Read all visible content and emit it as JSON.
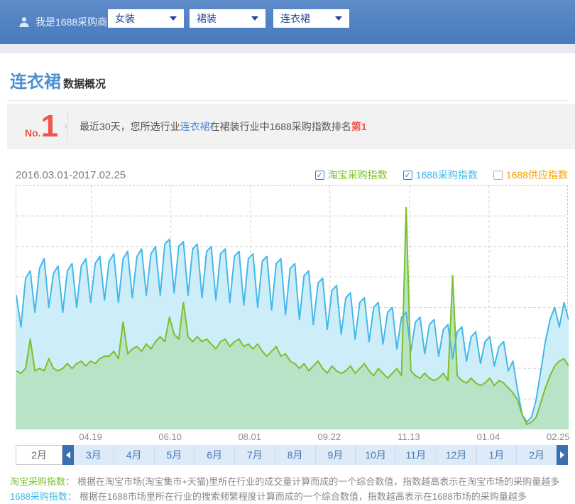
{
  "header": {
    "user_label": "我是1688采购商",
    "dropdowns": [
      "女装",
      "裙装",
      "连衣裙"
    ]
  },
  "page": {
    "title_keyword": "连衣裙",
    "title_suffix": "数据概况"
  },
  "rank_banner": {
    "rank_prefix": "No.",
    "rank_number": "1",
    "text_before": "最近30天，您所选行业",
    "keyword": "连衣裙",
    "text_middle": "在裙装行业中1688采购指数排名",
    "rank_text": "第1"
  },
  "chart": {
    "date_range": "2016.03.01-2017.02.25"
  },
  "chart_data": {
    "type": "area",
    "title": "",
    "x_axis": {
      "tick_labels": [
        "04.19",
        "06.10",
        "08.01",
        "09.22",
        "11.13",
        "01.04",
        "02.25"
      ],
      "tick_days": [
        49,
        101,
        153,
        205,
        257,
        309,
        361
      ],
      "total_days": 361
    },
    "y_axis": {
      "min": 0,
      "max": 100,
      "ticks_hidden": true,
      "h_gridlines": 7
    },
    "grid": {
      "color": "#d4d4d4",
      "dash": "4,3"
    },
    "legend_position": "top-right",
    "series": [
      {
        "name": "淘宝采购指数",
        "checked": true,
        "color": "#7cbf2a",
        "fill": "#b9e3c6",
        "values": [
          24,
          23,
          25,
          37,
          24,
          25,
          24,
          29,
          25,
          24,
          25,
          27,
          25,
          27,
          28,
          26,
          28,
          27,
          29,
          30,
          30,
          32,
          29,
          44,
          31,
          33,
          34,
          32,
          35,
          33,
          36,
          38,
          36,
          46,
          39,
          37,
          52,
          38,
          36,
          38,
          36,
          37,
          35,
          33,
          36,
          37,
          34,
          36,
          37,
          34,
          35,
          33,
          35,
          32,
          30,
          32,
          34,
          30,
          31,
          28,
          27,
          25,
          27,
          24,
          26,
          28,
          25,
          23,
          26,
          24,
          23,
          24,
          26,
          23,
          25,
          27,
          24,
          22,
          25,
          23,
          21,
          23,
          25,
          22,
          91,
          24,
          22,
          21,
          23,
          21,
          20,
          21,
          23,
          20,
          63,
          22,
          20,
          19,
          21,
          19,
          18,
          19,
          21,
          18,
          20,
          19,
          17,
          15,
          12,
          6,
          2,
          3,
          5,
          11,
          17,
          22,
          26,
          28,
          29,
          26
        ]
      },
      {
        "name": "1688采购指数",
        "checked": true,
        "color": "#45b8e8",
        "fill": "#cdeef9",
        "values": [
          55,
          42,
          62,
          65,
          48,
          66,
          70,
          50,
          64,
          67,
          48,
          65,
          68,
          50,
          67,
          70,
          52,
          68,
          71,
          53,
          69,
          72,
          52,
          70,
          73,
          54,
          71,
          74,
          55,
          72,
          75,
          55,
          76,
          78,
          56,
          75,
          77,
          55,
          74,
          76,
          54,
          73,
          75,
          53,
          72,
          74,
          52,
          71,
          73,
          51,
          70,
          72,
          50,
          69,
          71,
          49,
          68,
          70,
          47,
          66,
          68,
          45,
          63,
          65,
          43,
          60,
          62,
          41,
          57,
          59,
          39,
          54,
          56,
          37,
          52,
          54,
          36,
          50,
          52,
          35,
          48,
          50,
          33,
          46,
          48,
          32,
          44,
          46,
          31,
          43,
          45,
          30,
          41,
          43,
          29,
          40,
          42,
          28,
          38,
          40,
          27,
          36,
          38,
          26,
          34,
          36,
          24,
          28,
          16,
          6,
          3,
          5,
          12,
          24,
          36,
          45,
          50,
          42,
          52,
          45
        ]
      },
      {
        "name": "1688供应指数",
        "checked": false,
        "color": "#f5a100",
        "fill": "",
        "values": []
      }
    ]
  },
  "month_bar": {
    "selected": "2月",
    "months": [
      "3月",
      "4月",
      "5月",
      "6月",
      "7月",
      "8月",
      "9月",
      "10月",
      "11月",
      "12月",
      "1月",
      "2月"
    ]
  },
  "footnotes": [
    {
      "label": "淘宝采购指数：",
      "color": "#7cbf2a",
      "text": "根据在淘宝市场(淘宝集市+天猫)里所在行业的成交量计算而成的一个综合数值，指数越高表示在淘宝市场的采购量越多"
    },
    {
      "label": "1688采购指数：",
      "color": "#45b8e8",
      "text": "根据在1688市场里所在行业的搜索频繁程度计算而成的一个综合数值，指数越高表示在1688市场的采购量越多"
    }
  ]
}
